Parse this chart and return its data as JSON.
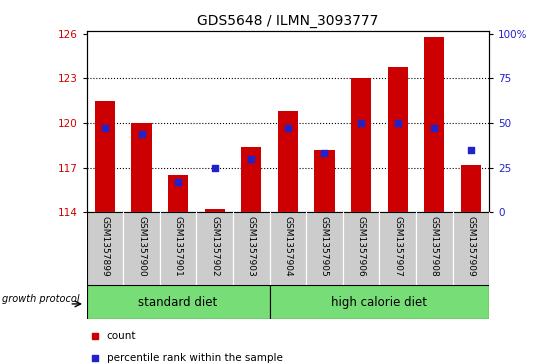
{
  "title": "GDS5648 / ILMN_3093777",
  "samples": [
    "GSM1357899",
    "GSM1357900",
    "GSM1357901",
    "GSM1357902",
    "GSM1357903",
    "GSM1357904",
    "GSM1357905",
    "GSM1357906",
    "GSM1357907",
    "GSM1357908",
    "GSM1357909"
  ],
  "counts": [
    121.5,
    120.0,
    116.5,
    114.2,
    118.4,
    120.8,
    118.2,
    123.0,
    123.8,
    125.8,
    117.2
  ],
  "percentiles": [
    47,
    44,
    17,
    25,
    30,
    47,
    33,
    50,
    50,
    47,
    35
  ],
  "y_min": 114,
  "y_max": 126,
  "y_ticks_left": [
    114,
    117,
    120,
    123,
    126
  ],
  "y_ticks_right": [
    0,
    25,
    50,
    75,
    100
  ],
  "bar_color": "#cc0000",
  "percentile_color": "#2222cc",
  "bar_bottom": 114,
  "standard_diet_count": 5,
  "high_calorie_diet_count": 6,
  "group_label_standard": "standard diet",
  "group_label_high": "high calorie diet",
  "growth_protocol_label": "growth protocol",
  "legend_count_label": "count",
  "legend_percentile_label": "percentile rank within the sample",
  "group_bg_color": "#77dd77",
  "sample_bg_color": "#cccccc",
  "title_fontsize": 10,
  "tick_fontsize": 7.5,
  "sample_fontsize": 6.5,
  "group_fontsize": 8.5,
  "legend_fontsize": 7.5
}
